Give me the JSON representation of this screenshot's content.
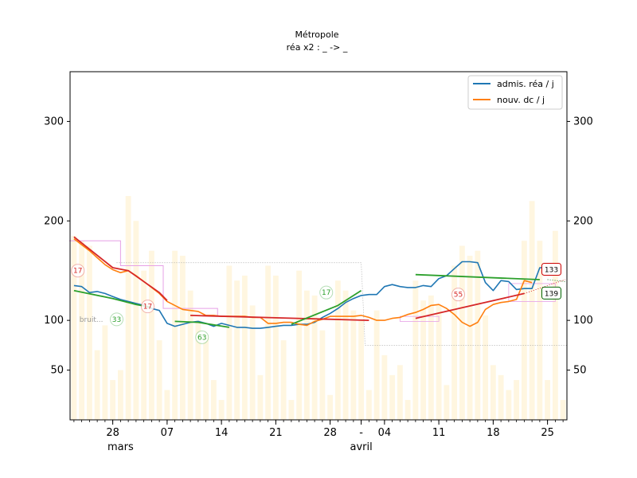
{
  "chart_data": {
    "type": "line",
    "title": "Métropole",
    "subtitle": "réa x2 : _ -> _",
    "xlabel": "",
    "ylabel": "",
    "x_range": [
      -0.5,
      63.5
    ],
    "ylim": [
      0,
      350
    ],
    "y_ticks": [
      50,
      100,
      200,
      300
    ],
    "x_ticks": [
      {
        "pos": 5,
        "label": "28"
      },
      {
        "pos": 12,
        "label": "07"
      },
      {
        "pos": 19,
        "label": "14"
      },
      {
        "pos": 26,
        "label": "21"
      },
      {
        "pos": 33,
        "label": "28"
      },
      {
        "pos": 37,
        "label": "-"
      },
      {
        "pos": 40,
        "label": "04"
      },
      {
        "pos": 47,
        "label": "11"
      },
      {
        "pos": 54,
        "label": "18"
      },
      {
        "pos": 61,
        "label": "25"
      }
    ],
    "month_labels": [
      {
        "pos": 6,
        "label": "mars"
      },
      {
        "pos": 37,
        "label": "avril"
      }
    ],
    "legend": {
      "placement": "top-right",
      "entries": [
        {
          "name": "admis. réa / j",
          "color": "#1f77b4"
        },
        {
          "name": "nouv. dc / j",
          "color": "#ff7f0e"
        }
      ]
    },
    "series": [
      {
        "name": "admis. réa / j",
        "color": "#1f77b4",
        "values": [
          135,
          134,
          128,
          129,
          127,
          124,
          121,
          119,
          117,
          115,
          112,
          110,
          97,
          94,
          96,
          98,
          99,
          97,
          94,
          97,
          95,
          93,
          93,
          92,
          92,
          93,
          94,
          95,
          95,
          96,
          96,
          98,
          103,
          107,
          112,
          118,
          122,
          125,
          126,
          126,
          134,
          136,
          134,
          133,
          133,
          135,
          134,
          142,
          145,
          152,
          159,
          159,
          158,
          138,
          130,
          140,
          139,
          131,
          132,
          132,
          153,
          153,
          null,
          null
        ]
      },
      {
        "name": "nouv. dc / j",
        "color": "#ff7f0e",
        "values": [
          182,
          176,
          170,
          163,
          156,
          151,
          148,
          150,
          145,
          139,
          133,
          127,
          119,
          115,
          111,
          110,
          109,
          105,
          105,
          104,
          104,
          104,
          104,
          103,
          103,
          97,
          97,
          98,
          98,
          96,
          95,
          99,
          101,
          104,
          104,
          104,
          104,
          105,
          103,
          100,
          100,
          102,
          103,
          106,
          108,
          111,
          115,
          116,
          112,
          106,
          98,
          94,
          98,
          111,
          116,
          118,
          119,
          121,
          140,
          138,
          null,
          null,
          null,
          null
        ]
      },
      {
        "name": "trend red 1",
        "color": "#d62728",
        "x": [
          0,
          5,
          7,
          11,
          12
        ],
        "values": [
          184,
          153,
          150,
          128,
          120
        ]
      },
      {
        "name": "trend red 2",
        "color": "#d62728",
        "x": [
          15,
          38
        ],
        "values": [
          105,
          100
        ]
      },
      {
        "name": "trend red 3",
        "color": "#d62728",
        "x": [
          44,
          58
        ],
        "values": [
          102,
          127
        ]
      },
      {
        "name": "trend green 1",
        "color": "#2ca02c",
        "x": [
          0,
          5,
          8,
          10
        ],
        "values": [
          130,
          122,
          116,
          113
        ]
      },
      {
        "name": "trend green 2",
        "color": "#2ca02c",
        "x": [
          13,
          16,
          20
        ],
        "values": [
          99,
          98,
          93
        ]
      },
      {
        "name": "trend green 3",
        "color": "#2ca02c",
        "x": [
          28,
          34,
          37
        ],
        "values": [
          96,
          115,
          130
        ]
      },
      {
        "name": "trend green 4",
        "color": "#2ca02c",
        "x": [
          44,
          60
        ],
        "values": [
          146,
          141
        ]
      }
    ],
    "bars_light": [
      185,
      180,
      175,
      70,
      95,
      40,
      50,
      225,
      200,
      150,
      170,
      80,
      30,
      170,
      165,
      130,
      100,
      85,
      40,
      20,
      155,
      140,
      145,
      115,
      45,
      155,
      145,
      80,
      20,
      150,
      130,
      125,
      90,
      25,
      140,
      130,
      110,
      100,
      30,
      110,
      65,
      45,
      55,
      20,
      140,
      120,
      125,
      115,
      35,
      155,
      175,
      165,
      170,
      105,
      55,
      45,
      30,
      40,
      180,
      220,
      180,
      40,
      190,
      20
    ],
    "annotations": [
      {
        "x": 0.5,
        "y": 150,
        "label": "17",
        "color": "#d62728"
      },
      {
        "x": 9.5,
        "y": 114,
        "label": "17",
        "color": "#d62728"
      },
      {
        "x": 5.5,
        "y": 101,
        "label": "33",
        "color": "#2ca02c"
      },
      {
        "x": 16.5,
        "y": 83,
        "label": "63",
        "color": "#2ca02c"
      },
      {
        "x": 32.5,
        "y": 128,
        "label": "17",
        "color": "#2ca02c"
      },
      {
        "x": 49.5,
        "y": 126,
        "label": "55",
        "color": "#d62728"
      }
    ],
    "end_labels": [
      {
        "x": 61.5,
        "y": 151,
        "label": "133",
        "color": "#cc0000"
      },
      {
        "x": 61.5,
        "y": 127,
        "label": "139",
        "color": "#006400"
      }
    ],
    "noise_label": "bruit..."
  }
}
